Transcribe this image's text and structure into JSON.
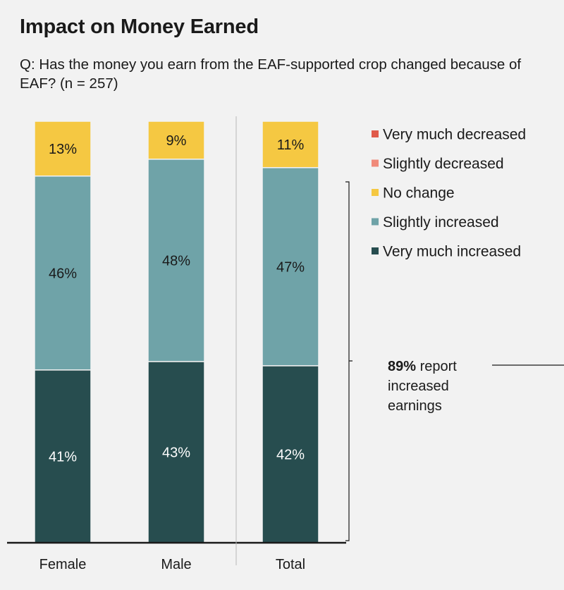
{
  "header": {
    "title": "Impact on Money Earned",
    "subtitle": "Q: Has the money you earn from the EAF-supported crop changed because of EAF? (n = 257)"
  },
  "callout": {
    "value": "89%",
    "text": " report increased earnings"
  },
  "colors": {
    "very_much_decreased": "#e05a4a",
    "slightly_decreased": "#f08a7a",
    "no_change": "#f5c842",
    "slightly_increased": "#6fa3a8",
    "very_much_increased": "#274d4f",
    "background": "#f2f2f2",
    "axis": "#1a1a1a"
  },
  "chart_data": {
    "type": "bar",
    "stacked": true,
    "orientation": "vertical",
    "categories": [
      "Female",
      "Male",
      "Total"
    ],
    "series": [
      {
        "name": "Very much decreased",
        "values": [
          0,
          0,
          0
        ],
        "color": "#e05a4a"
      },
      {
        "name": "Slightly decreased",
        "values": [
          0,
          0,
          0
        ],
        "color": "#f08a7a"
      },
      {
        "name": "No change",
        "values": [
          13,
          9,
          11
        ],
        "color": "#f5c842"
      },
      {
        "name": "Slightly increased",
        "values": [
          46,
          48,
          47
        ],
        "color": "#6fa3a8"
      },
      {
        "name": "Very much increased",
        "values": [
          41,
          43,
          42
        ],
        "color": "#274d4f"
      }
    ],
    "data_labels": {
      "No change": [
        "13%",
        "9%",
        "11%"
      ],
      "Slightly increased": [
        "46%",
        "48%",
        "47%"
      ],
      "Very much increased": [
        "41%",
        "43%",
        "42%"
      ]
    },
    "ylim": [
      0,
      100
    ],
    "legend_position": "right",
    "grid": false
  }
}
